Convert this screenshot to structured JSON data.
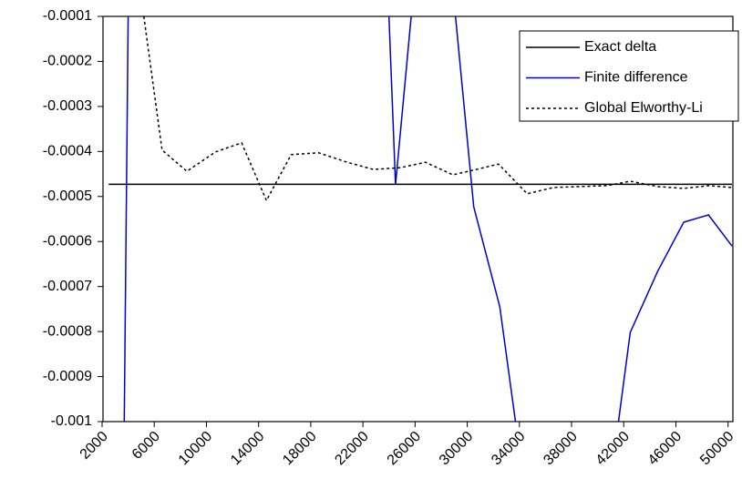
{
  "chart_data": {
    "type": "line",
    "xlim": [
      2000,
      50300
    ],
    "ylim": [
      -0.001,
      -0.0001
    ],
    "xticks": [
      2000,
      6000,
      10000,
      14000,
      18000,
      22000,
      26000,
      30000,
      34000,
      38000,
      42000,
      46000,
      50000
    ],
    "yticks": [
      -0.001,
      -0.0009,
      -0.0008,
      -0.0007,
      -0.0006,
      -0.0005,
      -0.0004,
      -0.0003,
      -0.0002,
      -0.0001
    ],
    "grid": false,
    "legend": "upper-right",
    "series": [
      {
        "name": "Exact delta",
        "color": "#000000",
        "style": "solid",
        "x": [
          2500,
          50300
        ],
        "values": [
          -0.000473,
          -0.000473
        ]
      },
      {
        "name": "Finite difference",
        "color": "#0000cc",
        "style": "solid",
        "x": [
          3700,
          4000,
          null,
          24000,
          24500,
          25700,
          null,
          29100,
          30500,
          32500,
          33700,
          null,
          41600,
          42500,
          44600,
          46600,
          48500,
          50300
        ],
        "values": [
          -0.001,
          -0.0001,
          null,
          -0.0001,
          -0.000474,
          -0.0001,
          null,
          -0.0001,
          -0.000523,
          -0.000745,
          -0.001,
          null,
          -0.001,
          -0.000802,
          -0.000666,
          -0.000557,
          -0.000541,
          -0.00061
        ]
      },
      {
        "name": "Global Elworthy-Li",
        "color": "#000000",
        "style": "dotted",
        "x": [
          5200,
          6600,
          8500,
          10700,
          12700,
          14600,
          16500,
          18600,
          20800,
          22800,
          24900,
          26800,
          28900,
          30700,
          32400,
          34600,
          36600,
          38600,
          40700,
          42500,
          44600,
          46600,
          48500,
          50300
        ],
        "values": [
          -0.0001,
          -0.000397,
          -0.000444,
          -0.000401,
          -0.000381,
          -0.000509,
          -0.000407,
          -0.000403,
          -0.000424,
          -0.00044,
          -0.000436,
          -0.000424,
          -0.000452,
          -0.00044,
          -0.000428,
          -0.000494,
          -0.00048,
          -0.000478,
          -0.000476,
          -0.000466,
          -0.000478,
          -0.000482,
          -0.000476,
          -0.00048
        ]
      }
    ]
  }
}
